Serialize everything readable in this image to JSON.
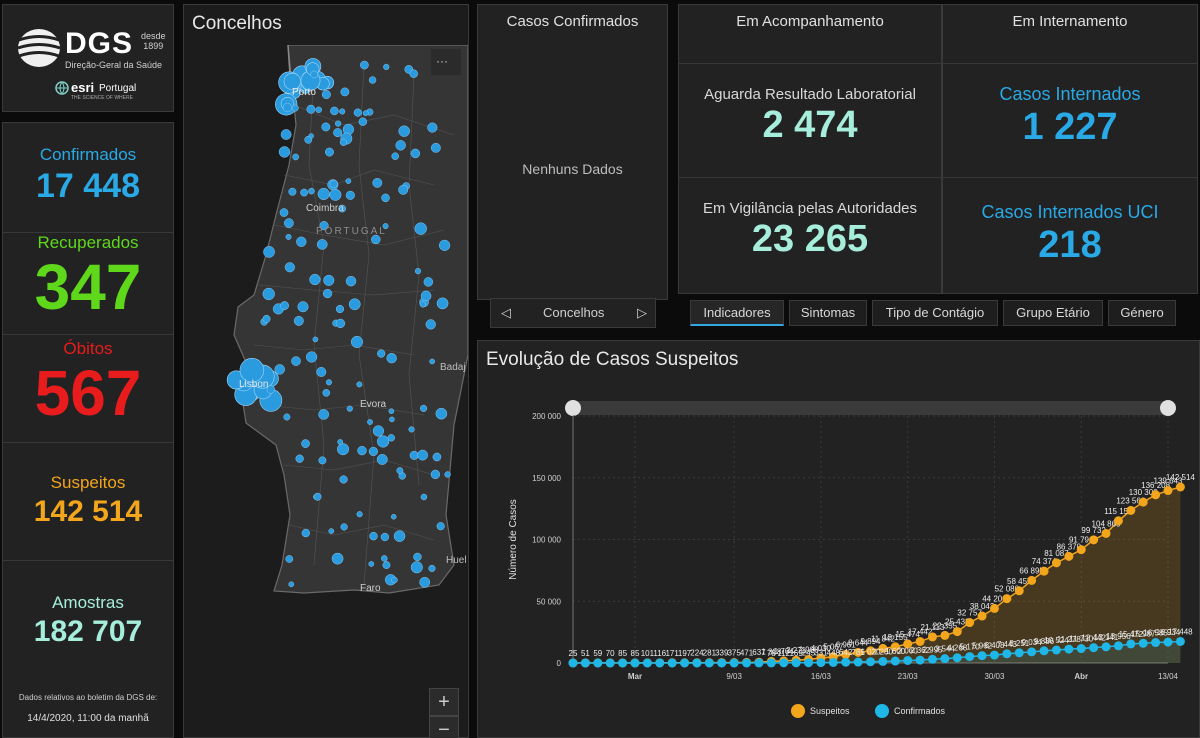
{
  "logo": {
    "brand": "DGS",
    "since_line1": "desde",
    "since_line2": "1899",
    "subtitle": "Direção-Geral da Saúde",
    "partner": "esri",
    "partner_country": "Portugal",
    "partner_tagline": "THE SCIENCE OF WHERE"
  },
  "stats": {
    "confirmados": {
      "label": "Confirmados",
      "value": "17 448",
      "color": "#29a9e6"
    },
    "recuperados": {
      "label": "Recuperados",
      "value": "347",
      "color": "#5fd81c"
    },
    "obitos": {
      "label": "Óbitos",
      "value": "567",
      "color": "#e81c1c"
    },
    "suspeitos": {
      "label": "Suspeitos",
      "value": "142 514",
      "color": "#f3a51c"
    },
    "amostras": {
      "label": "Amostras",
      "value": "182 707",
      "color": "#a6eedb"
    }
  },
  "footer": {
    "note": "Dados relativos ao boletim da DGS de:",
    "date": "14/4/2020, 11:00 da manhã"
  },
  "map": {
    "title": "Concelhos",
    "menu_icon": "ellipsis-icon",
    "labels": {
      "porto": "Porto",
      "coimbra": "Coimbra",
      "portugal": "PORTUGAL",
      "lisbon": "Lisbon",
      "evora": "Evora",
      "faro": "Faro",
      "badajoz": "Badaj",
      "huelva": "Huel"
    },
    "zoom_in": "+",
    "zoom_out": "−",
    "point_color": "#2b9be0"
  },
  "confirmed_panel": {
    "title": "Casos Confirmados",
    "empty": "Nenhuns Dados",
    "nav_label": "Concelhos",
    "prev_icon": "triangle-left-icon",
    "next_icon": "triangle-right-icon"
  },
  "acompanhamento": {
    "title": "Em Acompanhamento",
    "aguarda_label": "Aguarda Resultado Laboratorial",
    "aguarda_value": "2 474",
    "vigilancia_label": "Em Vigilância pelas Autoridades",
    "vigilancia_value": "23 265",
    "value_color": "#a6eedb"
  },
  "internamento": {
    "title": "Em Internamento",
    "internados_label": "Casos Internados",
    "internados_value": "1 227",
    "uci_label": "Casos Internados UCI",
    "uci_value": "218",
    "color": "#29a9e6"
  },
  "tabs": [
    "Indicadores",
    "Sintomas",
    "Tipo de Contágio",
    "Grupo Etário",
    "Género"
  ],
  "chart_data": {
    "type": "line",
    "title": "Evolução de Casos Suspeitos",
    "ylabel": "Número de Casos",
    "ylim": [
      0,
      200000
    ],
    "yticks": [
      0,
      50000,
      100000,
      150000,
      200000
    ],
    "ytick_labels": [
      "0",
      "50 000",
      "100 000",
      "150 000",
      "200 000"
    ],
    "x_start": "2020-02-25",
    "x_end": "2020-04-13",
    "xtick_dates": [
      "2020-03-01",
      "2020-03-09",
      "2020-03-16",
      "2020-03-23",
      "2020-03-30",
      "2020-04-06",
      "2020-04-13"
    ],
    "xtick_labels": [
      "Mar",
      "9/03",
      "16/03",
      "23/03",
      "30/03",
      "Abr",
      "13/04"
    ],
    "legend": "bottom",
    "grid": true,
    "series": [
      {
        "name": "Suspeitos",
        "color": "#f3a51c",
        "values": [
          25,
          51,
          59,
          70,
          85,
          85,
          101,
          116,
          171,
          197,
          224,
          281,
          339,
          375,
          471,
          637,
          1308,
          1704,
          2271,
          2908,
          4030,
          5067,
          6961,
          8644,
          9894,
          11842,
          13155,
          15474,
          17442,
          21113,
          22355,
          25432,
          32757,
          38042,
          44200,
          52080,
          58457,
          66895,
          74374,
          81087,
          86370,
          91791,
          99732,
          104865,
          115150,
          123560,
          130300,
          136208,
          139643,
          142514
        ]
      },
      {
        "name": "Confirmados",
        "color": "#1eb7e8",
        "values": [
          0,
          0,
          0,
          0,
          0,
          0,
          2,
          4,
          6,
          9,
          13,
          21,
          30,
          30,
          41,
          59,
          78,
          112,
          169,
          245,
          331,
          448,
          642,
          785,
          1020,
          1280,
          1600,
          2060,
          2362,
          2995,
          3544,
          4268,
          5170,
          5962,
          6408,
          7443,
          8251,
          9034,
          9886,
          10524,
          11278,
          11730,
          12442,
          13141,
          13956,
          15472,
          15987,
          16585,
          16934,
          17448
        ]
      }
    ],
    "data_labels_suspeitos": [
      "25",
      "51",
      "59",
      "70",
      "85",
      "85",
      "101",
      "116",
      "171",
      "197",
      "224",
      "281",
      "339",
      "375",
      "471",
      "637",
      "1 308",
      "1 704",
      "2 271",
      "2 908",
      "4 030",
      "5 067",
      "6 961",
      "8 644",
      "9 894",
      "11 842",
      "13 155",
      "15 474",
      "17 442",
      "21 113",
      "22 355",
      "25 432",
      "32 757",
      "38 042",
      "44 200",
      "52 080",
      "58 457",
      "66 895",
      "74 374",
      "81 087",
      "86 370",
      "91 791",
      "99 732",
      "104 865",
      "115 150",
      "123 560",
      "130 300",
      "136 208",
      "139 643",
      "142 514"
    ],
    "data_labels_confirmados": [
      "0",
      "0",
      "0",
      "0",
      "0",
      "0",
      "2",
      "4",
      "6",
      "9",
      "13",
      "21",
      "30",
      "30",
      "41",
      "59",
      "78",
      "112",
      "169",
      "245",
      "331",
      "448",
      "642",
      "785",
      "1 020",
      "1 280",
      "1 600",
      "2 060",
      "2 362",
      "2 995",
      "3 544",
      "4 268",
      "5 170",
      "5 962",
      "6 408",
      "7 443",
      "8 251",
      "9 034",
      "9 886",
      "10 524",
      "11 278",
      "11 730",
      "12 442",
      "13 141",
      "13 956",
      "15 472",
      "15 987",
      "16 585",
      "16 934",
      "17 448"
    ]
  }
}
